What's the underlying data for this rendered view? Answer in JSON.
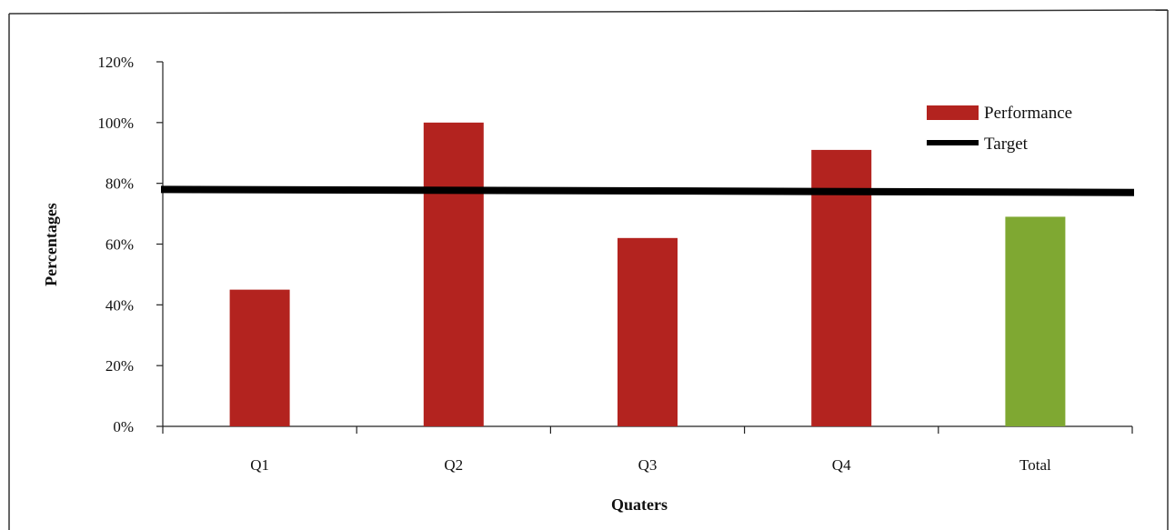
{
  "chart_data": {
    "type": "bar",
    "categories": [
      "Q1",
      "Q2",
      "Q3",
      "Q4",
      "Total"
    ],
    "series": [
      {
        "name": "Performance",
        "values": [
          45,
          100,
          62,
          91,
          69
        ],
        "color": "#b3231f",
        "total_color": "#7fa832"
      },
      {
        "name": "Target",
        "type": "line",
        "values": [
          78,
          77.5,
          77.5,
          77,
          77
        ],
        "color": "#000000"
      }
    ],
    "xlabel": "Quaters",
    "ylabel": "Percentages",
    "ylim": [
      0,
      120
    ],
    "yticks": [
      "0%",
      "20%",
      "40%",
      "60%",
      "80%",
      "100%",
      "120%"
    ],
    "ytick_values": [
      0,
      20,
      40,
      60,
      80,
      100,
      120
    ],
    "grid": false,
    "legend": {
      "position": "top-right",
      "entries": [
        "Performance",
        "Target"
      ]
    }
  }
}
